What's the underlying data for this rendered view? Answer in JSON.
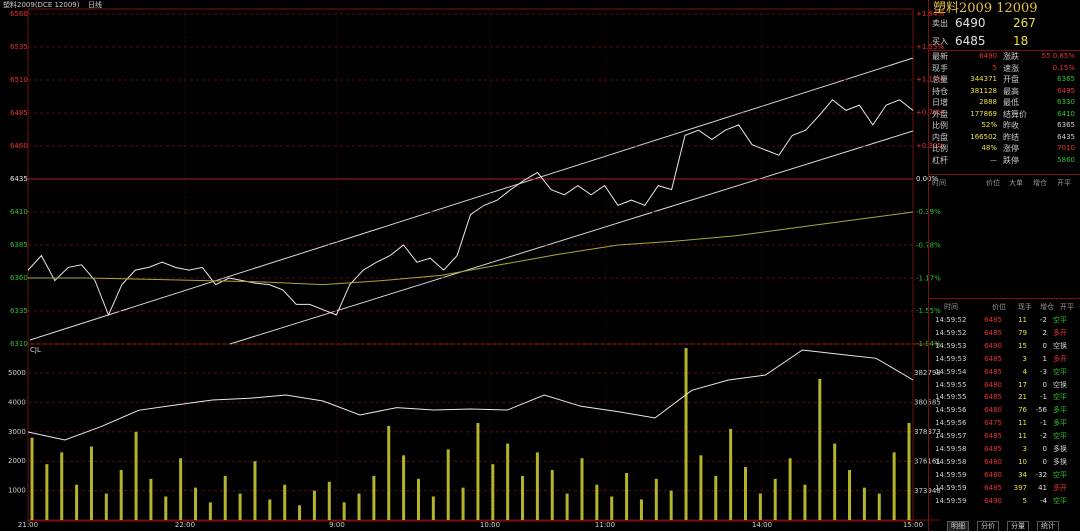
{
  "header": {
    "title": "塑料2009(DCE 12009)",
    "period": "日线"
  },
  "price_chart": {
    "type": "line",
    "ylim": [
      6310,
      6560
    ],
    "yticks": [
      6560,
      6535,
      6510,
      6485,
      6460,
      6435,
      6410,
      6385,
      6360,
      6335,
      6310
    ],
    "y2lim": [
      -1.94,
      1.94
    ],
    "y2ticks": [
      {
        "value": 1.94,
        "label": "+1.94%"
      },
      {
        "value": 1.55,
        "label": "+1.55%"
      },
      {
        "value": 1.17,
        "label": "+1.17%"
      },
      {
        "value": 0.78,
        "label": "+0.78%"
      },
      {
        "value": 0.39,
        "label": "+0.39%"
      },
      {
        "value": 0,
        "label": "0.00%"
      },
      {
        "value": -0.39,
        "label": "-0.39%"
      },
      {
        "value": -0.78,
        "label": "-0.78%"
      },
      {
        "value": -1.17,
        "label": "-1.17%"
      },
      {
        "value": -1.55,
        "label": "-1.55%"
      },
      {
        "value": -1.94,
        "label": "-1.94%"
      }
    ],
    "x_labels": [
      "21:00",
      "22:00",
      "9:00",
      "10:00",
      "11:00",
      "14:00",
      "15:00"
    ],
    "series": [
      {
        "color": "#e8e8e8",
        "values": [
          6366,
          6377,
          6358,
          6368,
          6370,
          6358,
          6332,
          6355,
          6366,
          6368,
          6372,
          6368,
          6366,
          6368,
          6355,
          6360,
          6358,
          6356,
          6355,
          6351,
          6340,
          6340,
          6336,
          6332,
          6355,
          6366,
          6372,
          6377,
          6385,
          6372,
          6375,
          6366,
          6377,
          6408,
          6415,
          6419,
          6427,
          6434,
          6440,
          6427,
          6423,
          6430,
          6423,
          6430,
          6415,
          6419,
          6415,
          6430,
          6427,
          6468,
          6472,
          6465,
          6472,
          6476,
          6461,
          6457,
          6453,
          6468,
          6472,
          6483,
          6495,
          6487,
          6491,
          6476,
          6491,
          6495,
          6487
        ]
      },
      {
        "color": "#a8a838",
        "values": [
          6360,
          6360,
          6359,
          6358,
          6357,
          6355,
          6358,
          6362,
          6370,
          6378,
          6385,
          6388,
          6392,
          6398,
          6404,
          6410
        ]
      }
    ]
  },
  "volume_chart": {
    "label": "CJL",
    "ylim": [
      0,
      5850
    ],
    "yticks": [
      5000,
      4000,
      3000,
      2000,
      1000
    ],
    "y2lim": [
      371773,
      384673
    ],
    "y2ticks": [
      382798,
      380585,
      378373,
      376161,
      373948
    ],
    "bar_color": "#b4b42a",
    "values": [
      2800,
      1900,
      2300,
      1200,
      2500,
      900,
      1700,
      3000,
      1400,
      800,
      2100,
      1100,
      600,
      1500,
      900,
      2000,
      700,
      1200,
      500,
      1000,
      1300,
      600,
      900,
      1500,
      3200,
      2200,
      1400,
      800,
      2400,
      1100,
      3300,
      1900,
      2600,
      1500,
      2300,
      1700,
      900,
      2100,
      1200,
      800,
      1600,
      700,
      1400,
      1000,
      5850,
      2200,
      1500,
      3100,
      1800,
      900,
      1400,
      2100,
      1200,
      4800,
      2600,
      1700,
      1100,
      900,
      2300,
      3300
    ],
    "line": {
      "color": "#e8e8e8",
      "values": [
        378373,
        377773,
        378800,
        380000,
        380398,
        380773,
        380900,
        381148,
        380700,
        379648,
        380200,
        380023,
        380100,
        380023,
        381148,
        380300,
        379900,
        379423,
        381500,
        382273,
        382648,
        384523,
        384200,
        383900,
        382273
      ]
    }
  },
  "quote": {
    "title": "塑料2009  12009",
    "ask": {
      "label": "卖出",
      "price": 6490,
      "volume": 267
    },
    "bid": {
      "label": "买入",
      "price": 6485,
      "volume": 18
    },
    "stats": [
      [
        "最新",
        "6490",
        "涨跌",
        "55 0.85%"
      ],
      [
        "现手",
        "5",
        "速涨",
        "0.15%"
      ],
      [
        "总量",
        "344371",
        "开盘",
        "6365"
      ],
      [
        "持仓",
        "381128",
        "最高",
        "6495"
      ],
      [
        "日增",
        "2888",
        "最低",
        "6330"
      ],
      [
        "外盘",
        "177869",
        "结算价",
        "6410"
      ],
      [
        "比例",
        "52%",
        "昨收",
        "6365"
      ],
      [
        "内盘",
        "166502",
        "昨结",
        "6435"
      ],
      [
        "比例",
        "48%",
        "涨停",
        "7010"
      ],
      [
        "杠杆",
        "—",
        "跌停",
        "5860"
      ]
    ]
  },
  "depth": {
    "columns": [
      "时间",
      "价位",
      "大单",
      "增仓",
      "开平"
    ]
  },
  "trades": {
    "columns": [
      "时间",
      "价位",
      "现手",
      "增仓",
      "开平"
    ],
    "rows": [
      [
        "14:59:52",
        6485,
        11,
        -2,
        "空平"
      ],
      [
        "14:59:52",
        6485,
        79,
        2,
        "多开"
      ],
      [
        "14:59:53",
        6490,
        15,
        0,
        "空换"
      ],
      [
        "14:59:53",
        6485,
        3,
        1,
        "多开"
      ],
      [
        "14:59:54",
        6485,
        4,
        -3,
        "空平"
      ],
      [
        "14:59:55",
        6480,
        17,
        0,
        "空换"
      ],
      [
        "14:59:55",
        6485,
        21,
        -1,
        "空平"
      ],
      [
        "14:59:56",
        6480,
        76,
        -56,
        "多平"
      ],
      [
        "14:59:56",
        6475,
        11,
        -1,
        "多平"
      ],
      [
        "14:59:57",
        6485,
        11,
        -2,
        "空平"
      ],
      [
        "14:59:58",
        6485,
        3,
        0,
        "多换"
      ],
      [
        "14:59:58",
        6480,
        10,
        0,
        "多换"
      ],
      [
        "14:59:59",
        6480,
        34,
        -32,
        "空平"
      ],
      [
        "14:59:59",
        6485,
        397,
        41,
        "多开"
      ],
      [
        "14:59:59",
        6490,
        5,
        -4,
        "空平"
      ]
    ]
  },
  "tabs": [
    "明细",
    "分价",
    "分量",
    "统计"
  ]
}
